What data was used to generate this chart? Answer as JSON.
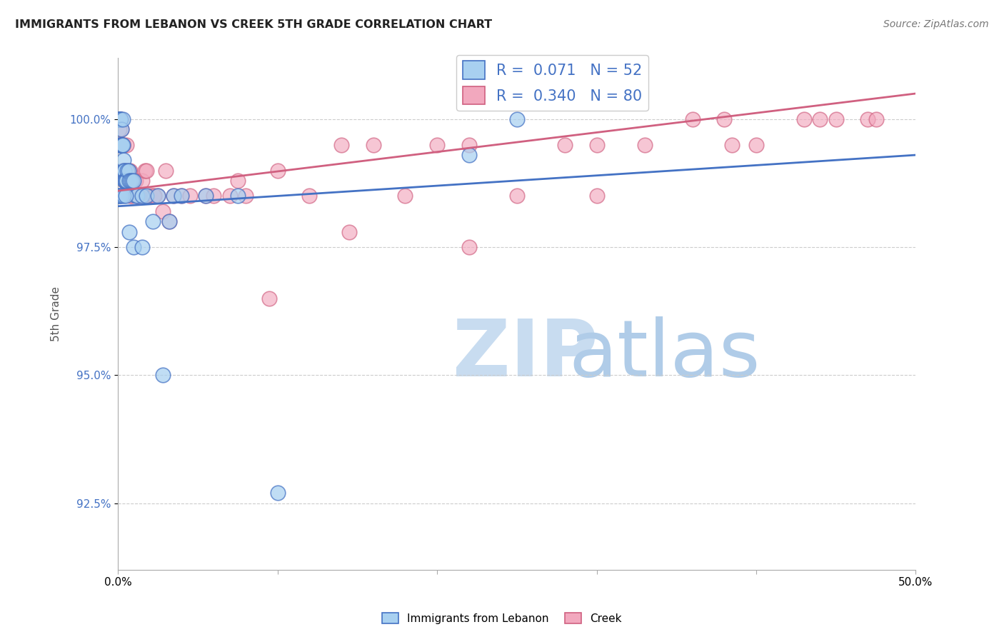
{
  "title": "IMMIGRANTS FROM LEBANON VS CREEK 5TH GRADE CORRELATION CHART",
  "source": "Source: ZipAtlas.com",
  "ylabel": "5th Grade",
  "y_ticks": [
    92.5,
    95.0,
    97.5,
    100.0
  ],
  "y_min": 91.2,
  "y_max": 101.2,
  "x_min": 0.0,
  "x_max": 50.0,
  "legend1_label": "Immigrants from Lebanon",
  "legend2_label": "Creek",
  "legend1_R": "0.071",
  "legend1_N": "52",
  "legend2_R": "0.340",
  "legend2_N": "80",
  "color_blue": "#A8D0F0",
  "color_pink": "#F2A8BE",
  "line_color_blue": "#4472C4",
  "line_color_pink": "#D06080",
  "watermark_zip_color": "#C8DCF0",
  "watermark_atlas_color": "#B0CCE8",
  "blue_x": [
    0.05,
    0.08,
    0.1,
    0.1,
    0.12,
    0.15,
    0.15,
    0.18,
    0.2,
    0.22,
    0.25,
    0.28,
    0.3,
    0.3,
    0.32,
    0.35,
    0.38,
    0.4,
    0.42,
    0.45,
    0.5,
    0.55,
    0.6,
    0.65,
    0.7,
    0.8,
    0.9,
    1.0,
    1.1,
    1.2,
    1.5,
    1.8,
    2.2,
    2.5,
    3.2,
    3.5,
    4.0,
    5.5,
    7.5,
    22.0,
    25.0,
    0.05,
    0.08,
    0.12,
    0.2,
    0.35,
    0.5,
    0.7,
    1.0,
    1.5,
    2.8,
    10.0
  ],
  "blue_y": [
    100.0,
    100.0,
    100.0,
    99.5,
    100.0,
    100.0,
    99.5,
    100.0,
    99.5,
    99.8,
    99.5,
    99.5,
    99.5,
    100.0,
    99.0,
    99.2,
    99.0,
    99.0,
    98.8,
    98.8,
    98.8,
    98.8,
    99.0,
    99.0,
    98.8,
    98.8,
    98.8,
    98.8,
    98.5,
    98.5,
    98.5,
    98.5,
    98.0,
    98.5,
    98.0,
    98.5,
    98.5,
    98.5,
    98.5,
    99.3,
    100.0,
    98.5,
    98.5,
    98.5,
    98.5,
    98.5,
    98.5,
    97.8,
    97.5,
    97.5,
    95.0,
    92.7
  ],
  "pink_x": [
    0.05,
    0.08,
    0.1,
    0.12,
    0.15,
    0.15,
    0.18,
    0.2,
    0.22,
    0.25,
    0.28,
    0.3,
    0.32,
    0.35,
    0.38,
    0.4,
    0.42,
    0.45,
    0.5,
    0.55,
    0.6,
    0.65,
    0.7,
    0.75,
    0.8,
    0.85,
    0.9,
    1.0,
    1.1,
    1.2,
    1.5,
    1.7,
    2.0,
    2.2,
    2.5,
    2.8,
    3.0,
    3.5,
    4.0,
    5.5,
    7.0,
    8.0,
    10.0,
    12.0,
    14.0,
    16.0,
    18.0,
    20.0,
    22.0,
    25.0,
    28.0,
    30.0,
    33.0,
    36.0,
    38.0,
    40.0,
    43.0,
    45.0,
    47.0,
    0.1,
    0.2,
    0.3,
    0.4,
    0.55,
    0.65,
    0.75,
    1.3,
    1.8,
    2.3,
    3.2,
    4.5,
    6.0,
    7.5,
    9.5,
    14.5,
    22.0,
    30.0,
    38.5,
    44.0,
    47.5
  ],
  "pink_y": [
    100.0,
    100.0,
    100.0,
    100.0,
    100.0,
    100.0,
    100.0,
    99.8,
    99.5,
    99.5,
    99.5,
    99.5,
    99.0,
    99.5,
    99.0,
    99.0,
    98.8,
    99.0,
    99.0,
    98.8,
    99.0,
    99.0,
    98.8,
    99.0,
    98.8,
    98.8,
    98.5,
    98.8,
    98.8,
    98.5,
    98.8,
    99.0,
    98.5,
    98.5,
    98.5,
    98.2,
    99.0,
    98.5,
    98.5,
    98.5,
    98.5,
    98.5,
    99.0,
    98.5,
    99.5,
    99.5,
    98.5,
    99.5,
    99.5,
    98.5,
    99.5,
    99.5,
    99.5,
    100.0,
    100.0,
    99.5,
    100.0,
    100.0,
    100.0,
    99.8,
    99.5,
    99.0,
    98.8,
    99.5,
    99.0,
    98.5,
    98.5,
    99.0,
    98.5,
    98.0,
    98.5,
    98.5,
    98.8,
    96.5,
    97.8,
    97.5,
    98.5,
    99.5,
    100.0,
    100.0
  ],
  "blue_line": [
    0.0,
    50.0,
    98.3,
    99.3
  ],
  "pink_line": [
    0.0,
    50.0,
    98.6,
    100.5
  ]
}
